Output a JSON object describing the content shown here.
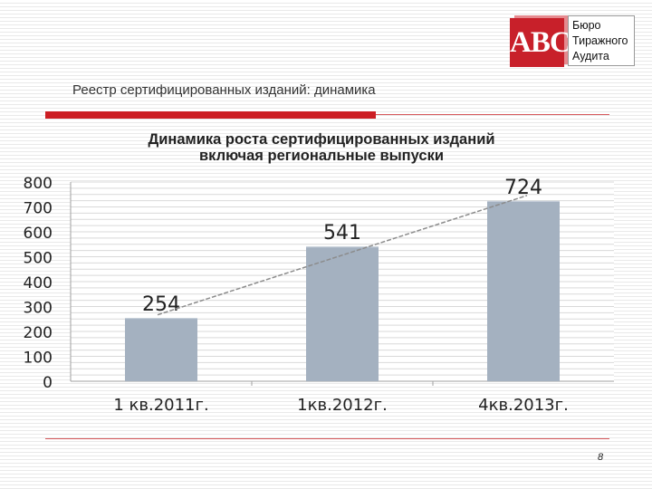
{
  "logo": {
    "abbr": "ABC",
    "lines": [
      "Бюро",
      "Тиражного",
      "Аудита"
    ]
  },
  "slide": {
    "subtitle": "Реестр сертифицированных изданий: динамика",
    "page_number": "8"
  },
  "colors": {
    "accent_red": "#cc1e24",
    "bar": "#a4b1c0",
    "trend": "#8c8c8c"
  },
  "chart_data": {
    "type": "bar",
    "title_lines": [
      "Динамика роста сертифицированных изданий",
      "включая региональные выпуски"
    ],
    "categories": [
      "1 кв.2011г.",
      "1кв.2012г.",
      "4кв.2013г."
    ],
    "values": [
      254,
      541,
      724
    ],
    "data_labels": [
      "254",
      "541",
      "724"
    ],
    "ylim": [
      0,
      800
    ],
    "yticks": [
      "0",
      "100",
      "200",
      "300",
      "400",
      "500",
      "600",
      "700",
      "800"
    ],
    "grid": true,
    "trendline": "linear",
    "legend": "none"
  }
}
